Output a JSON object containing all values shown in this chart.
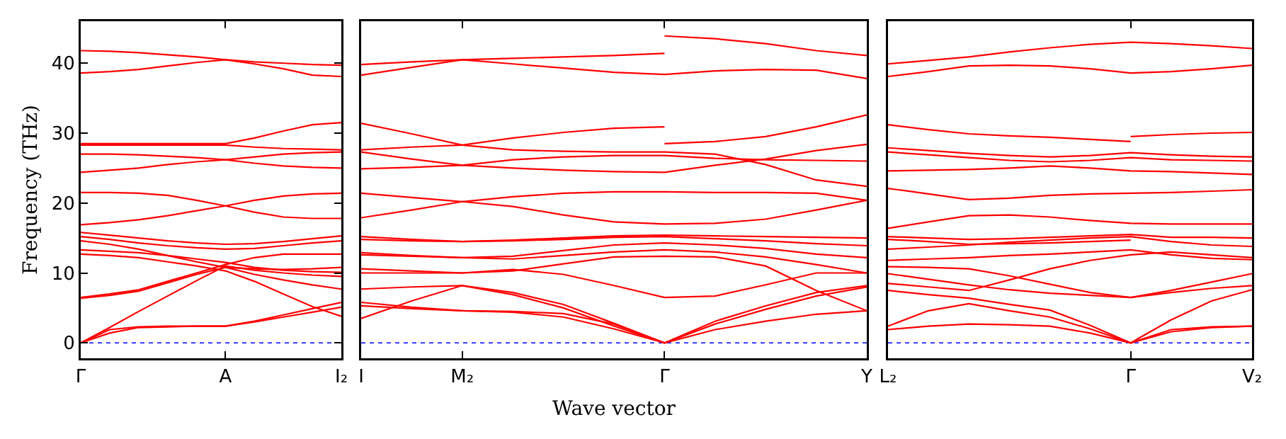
{
  "chart_data": [
    {
      "type": "line",
      "ylabel": "Frequency (THz)",
      "ylim": [
        -2.2,
        46
      ],
      "yticks": [
        0,
        10,
        20,
        30,
        40
      ],
      "categories": [
        "Γ",
        null,
        null,
        null,
        null,
        "A",
        null,
        null,
        null,
        "I₂"
      ],
      "ref_lines": [
        {
          "axis": "y",
          "value": 0,
          "color": "#0000ff",
          "line_style": "dotted"
        }
      ],
      "series": [
        {
          "color": "#ff0000",
          "values": [
            41.8,
            41.7,
            41.5,
            41.2,
            40.9,
            40.5,
            40.2,
            40.0,
            39.8,
            39.7
          ]
        },
        {
          "color": "#ff0000",
          "values": [
            38.6,
            38.8,
            39.1,
            39.6,
            40.1,
            40.5,
            39.9,
            39.2,
            38.3,
            38.1
          ]
        },
        {
          "color": "#ff0000",
          "values": [
            28.5,
            28.5,
            28.5,
            28.5,
            28.5,
            28.5,
            29.3,
            30.3,
            31.2,
            31.5
          ]
        },
        {
          "color": "#ff0000",
          "values": [
            28.3,
            28.3,
            28.3,
            28.3,
            28.3,
            28.3,
            28.0,
            27.8,
            27.7,
            27.6
          ]
        },
        {
          "color": "#ff0000",
          "values": [
            27.0,
            27.0,
            26.9,
            26.7,
            26.5,
            26.2,
            25.7,
            25.3,
            25.1,
            25.0
          ]
        },
        {
          "color": "#ff0000",
          "values": [
            24.4,
            24.7,
            25.0,
            25.5,
            25.9,
            26.2,
            26.6,
            27.0,
            27.2,
            27.3
          ]
        },
        {
          "color": "#ff0000",
          "values": [
            21.5,
            21.5,
            21.4,
            21.1,
            20.4,
            19.6,
            18.7,
            18.0,
            17.8,
            17.8
          ]
        },
        {
          "color": "#ff0000",
          "values": [
            16.9,
            17.2,
            17.6,
            18.2,
            18.9,
            19.6,
            20.4,
            21.0,
            21.3,
            21.4
          ]
        },
        {
          "color": "#ff0000",
          "values": [
            15.8,
            15.4,
            15.0,
            14.6,
            14.3,
            14.1,
            14.2,
            14.5,
            14.9,
            15.3
          ]
        },
        {
          "color": "#ff0000",
          "values": [
            15.2,
            14.8,
            14.3,
            13.9,
            13.6,
            13.4,
            13.5,
            13.9,
            14.3,
            14.6
          ]
        },
        {
          "color": "#ff0000",
          "values": [
            14.6,
            14.1,
            13.4,
            12.5,
            11.6,
            10.8,
            9.8,
            9.0,
            8.3,
            7.7
          ]
        },
        {
          "color": "#ff0000",
          "values": [
            13.3,
            13.1,
            12.9,
            12.5,
            12.0,
            11.5,
            10.8,
            10.4,
            10.2,
            10.1
          ]
        },
        {
          "color": "#ff0000",
          "values": [
            12.7,
            12.5,
            12.2,
            11.6,
            11.0,
            10.3,
            8.8,
            7.0,
            5.2,
            3.8
          ]
        },
        {
          "color": "#ff0000",
          "values": [
            6.5,
            7.0,
            7.6,
            8.8,
            10.0,
            11.2,
            12.2,
            12.7,
            12.7,
            12.7
          ]
        },
        {
          "color": "#ff0000",
          "values": [
            6.4,
            6.8,
            7.4,
            8.6,
            9.8,
            10.8,
            10.6,
            10.5,
            10.6,
            10.8
          ]
        },
        {
          "color": "#ff0000",
          "values": [
            0,
            2.2,
            4.5,
            6.7,
            8.9,
            11.0,
            10.4,
            10.0,
            9.7,
            9.5
          ]
        },
        {
          "color": "#ff0000",
          "values": [
            0,
            1.9,
            2.3,
            2.4,
            2.4,
            2.4,
            3.1,
            4.0,
            4.9,
            5.8
          ]
        },
        {
          "color": "#ff0000",
          "values": [
            0,
            1.4,
            2.2,
            2.3,
            2.4,
            2.4,
            3.0,
            3.7,
            4.4,
            5.1
          ]
        }
      ]
    },
    {
      "type": "line",
      "xlabel": "Wave vector",
      "ylim": [
        -2.2,
        46
      ],
      "tick_labels": "x",
      "categories": [
        "I",
        null,
        "M₂",
        null,
        null,
        null,
        "Γ",
        null,
        null,
        null,
        "Y"
      ],
      "ref_lines": [
        {
          "axis": "y",
          "value": 0,
          "color": "#0000ff",
          "line_style": "dotted"
        }
      ],
      "series": [
        {
          "color": "#ff0000",
          "values": [
            39.8,
            40.2,
            40.5,
            40.7,
            40.9,
            41.1,
            41.4,
            null,
            null,
            null,
            null
          ]
        },
        {
          "color": "#ff0000",
          "values": [
            38.3,
            39.4,
            40.5,
            39.9,
            39.3,
            38.7,
            38.4,
            38.9,
            39.1,
            39.0,
            37.8
          ]
        },
        {
          "color": "#ff0000",
          "values": [
            31.4,
            29.9,
            28.3,
            27.6,
            27.4,
            27.3,
            27.3,
            27.0,
            25.5,
            23.3,
            22.4
          ]
        },
        {
          "color": "#ff0000",
          "values": [
            27.6,
            28.0,
            28.3,
            29.3,
            30.1,
            30.7,
            30.9,
            null,
            null,
            null,
            null
          ]
        },
        {
          "color": "#ff0000",
          "values": [
            27.3,
            26.3,
            25.4,
            25.0,
            24.7,
            24.5,
            24.4,
            25.4,
            26.3,
            27.5,
            28.4
          ]
        },
        {
          "color": "#ff0000",
          "values": [
            24.9,
            25.1,
            25.4,
            26.2,
            26.6,
            26.8,
            26.8,
            26.4,
            26.2,
            26.1,
            26.0
          ]
        },
        {
          "color": "#ff0000",
          "values": [
            21.4,
            20.8,
            20.2,
            20.9,
            21.4,
            21.6,
            21.6,
            21.5,
            21.5,
            21.4,
            20.4
          ]
        },
        {
          "color": "#ff0000",
          "values": [
            17.9,
            19.0,
            20.2,
            19.5,
            18.3,
            17.3,
            17.0,
            17.1,
            17.7,
            19.0,
            20.4
          ]
        },
        {
          "color": "#ff0000",
          "values": [
            15.2,
            14.8,
            14.5,
            14.7,
            15.0,
            15.3,
            15.4,
            15.3,
            15.2,
            15.1,
            15.0
          ]
        },
        {
          "color": "#ff0000",
          "values": [
            14.8,
            14.6,
            14.5,
            14.6,
            14.8,
            15.1,
            15.2,
            14.9,
            14.6,
            14.2,
            13.9
          ]
        },
        {
          "color": "#ff0000",
          "values": [
            12.9,
            12.5,
            12.2,
            12.4,
            13.2,
            14.0,
            14.3,
            14.0,
            13.5,
            12.7,
            12.2
          ]
        },
        {
          "color": "#ff0000",
          "values": [
            12.6,
            12.4,
            12.2,
            12.0,
            12.5,
            13.0,
            13.3,
            13.0,
            12.3,
            11.2,
            10.0
          ]
        },
        {
          "color": "#ff0000",
          "values": [
            10.6,
            10.3,
            10.0,
            10.3,
            11.3,
            12.3,
            12.4,
            12.3,
            11.0,
            7.5,
            4.6
          ]
        },
        {
          "color": "#ff0000",
          "values": [
            10.0,
            10.0,
            10.0,
            10.5,
            9.8,
            8.2,
            6.5,
            6.7,
            8.3,
            10.0,
            10.0
          ]
        },
        {
          "color": "#ff0000",
          "values": [
            7.7,
            8.0,
            8.2,
            7.2,
            5.5,
            2.8,
            0,
            3.1,
            5.3,
            7.2,
            8.2
          ]
        },
        {
          "color": "#ff0000",
          "values": [
            3.5,
            6.0,
            8.2,
            6.9,
            5.0,
            2.4,
            0,
            2.7,
            4.8,
            6.7,
            8.0
          ]
        },
        {
          "color": "#ff0000",
          "values": [
            5.8,
            5.1,
            4.6,
            4.5,
            4.2,
            2.7,
            0,
            1.9,
            3.1,
            4.1,
            4.6
          ]
        },
        {
          "color": "#ff0000",
          "values": [
            5.3,
            4.9,
            4.6,
            4.4,
            3.7,
            2.0,
            0,
            null,
            null,
            null,
            null
          ]
        },
        {
          "color": "#ff0000",
          "values": [
            null,
            null,
            null,
            null,
            null,
            null,
            43.9,
            43.5,
            42.8,
            41.8,
            41.1
          ]
        },
        {
          "color": "#ff0000",
          "values": [
            null,
            null,
            null,
            null,
            null,
            null,
            28.5,
            28.8,
            29.5,
            30.9,
            32.6
          ]
        }
      ]
    },
    {
      "type": "line",
      "ylim": [
        -2.2,
        46
      ],
      "tick_labels": "x",
      "categories": [
        "L₂",
        null,
        null,
        null,
        null,
        null,
        "Γ",
        null,
        null,
        "V₂"
      ],
      "ref_lines": [
        {
          "axis": "y",
          "value": 0,
          "color": "#0000ff",
          "line_style": "dotted"
        }
      ],
      "series": [
        {
          "color": "#ff0000",
          "values": [
            39.9,
            40.4,
            40.9,
            41.6,
            42.2,
            42.7,
            43.0,
            42.8,
            42.5,
            42.1
          ]
        },
        {
          "color": "#ff0000",
          "values": [
            38.1,
            38.8,
            39.6,
            39.7,
            39.6,
            39.2,
            38.6,
            38.8,
            39.2,
            39.7
          ]
        },
        {
          "color": "#ff0000",
          "values": [
            31.2,
            30.5,
            29.9,
            29.6,
            29.4,
            29.1,
            28.8,
            null,
            null,
            null
          ]
        },
        {
          "color": "#ff0000",
          "values": [
            27.9,
            27.5,
            27.1,
            26.8,
            26.6,
            26.8,
            27.2,
            26.9,
            26.7,
            26.6
          ]
        },
        {
          "color": "#ff0000",
          "values": [
            27.3,
            26.9,
            26.5,
            26.1,
            25.9,
            26.1,
            26.5,
            26.2,
            26.1,
            26.0
          ]
        },
        {
          "color": "#ff0000",
          "values": [
            24.6,
            24.7,
            24.8,
            25.0,
            25.3,
            25.0,
            24.6,
            24.5,
            24.3,
            24.1
          ]
        },
        {
          "color": "#ff0000",
          "values": [
            22.1,
            21.3,
            20.5,
            20.7,
            21.1,
            21.3,
            21.4,
            21.5,
            21.7,
            21.9
          ]
        },
        {
          "color": "#ff0000",
          "values": [
            16.4,
            17.3,
            18.2,
            18.3,
            18.0,
            17.5,
            17.1,
            17.0,
            17.0,
            17.0
          ]
        },
        {
          "color": "#ff0000",
          "values": [
            15.2,
            15.0,
            14.8,
            14.9,
            15.1,
            15.3,
            15.5,
            15.1,
            15.1,
            15.0
          ]
        },
        {
          "color": "#ff0000",
          "values": [
            14.8,
            14.5,
            14.1,
            14.2,
            14.3,
            14.5,
            14.7,
            null,
            null,
            null
          ]
        },
        {
          "color": "#ff0000",
          "values": [
            13.4,
            13.7,
            14.0,
            14.4,
            14.7,
            15.0,
            15.2,
            14.5,
            14.0,
            13.8
          ]
        },
        {
          "color": "#ff0000",
          "values": [
            11.8,
            12.0,
            12.2,
            12.5,
            12.7,
            13.0,
            13.3,
            12.6,
            12.1,
            11.9
          ]
        },
        {
          "color": "#ff0000",
          "values": [
            10.9,
            10.8,
            10.6,
            9.6,
            8.4,
            7.2,
            6.5,
            7.5,
            8.7,
            9.9
          ]
        },
        {
          "color": "#ff0000",
          "values": [
            9.9,
            9.1,
            8.3,
            7.6,
            7.1,
            6.8,
            6.5,
            7.2,
            7.8,
            8.2
          ]
        },
        {
          "color": "#ff0000",
          "values": [
            8.5,
            8.0,
            7.5,
            9.0,
            10.6,
            11.8,
            12.6,
            13.0,
            12.6,
            12.2
          ]
        },
        {
          "color": "#ff0000",
          "values": [
            7.5,
            6.9,
            6.4,
            5.5,
            4.7,
            2.5,
            0,
            3.3,
            6.0,
            7.6
          ]
        },
        {
          "color": "#ff0000",
          "values": [
            2.4,
            4.6,
            5.6,
            4.6,
            3.7,
            2.0,
            0,
            1.6,
            2.2,
            2.4
          ]
        },
        {
          "color": "#ff0000",
          "values": [
            1.9,
            2.4,
            2.7,
            2.6,
            2.4,
            1.4,
            0,
            1.9,
            2.3,
            2.4
          ]
        },
        {
          "color": "#ff0000",
          "values": [
            null,
            null,
            null,
            null,
            null,
            null,
            29.5,
            29.8,
            30.0,
            30.1
          ]
        }
      ]
    }
  ]
}
